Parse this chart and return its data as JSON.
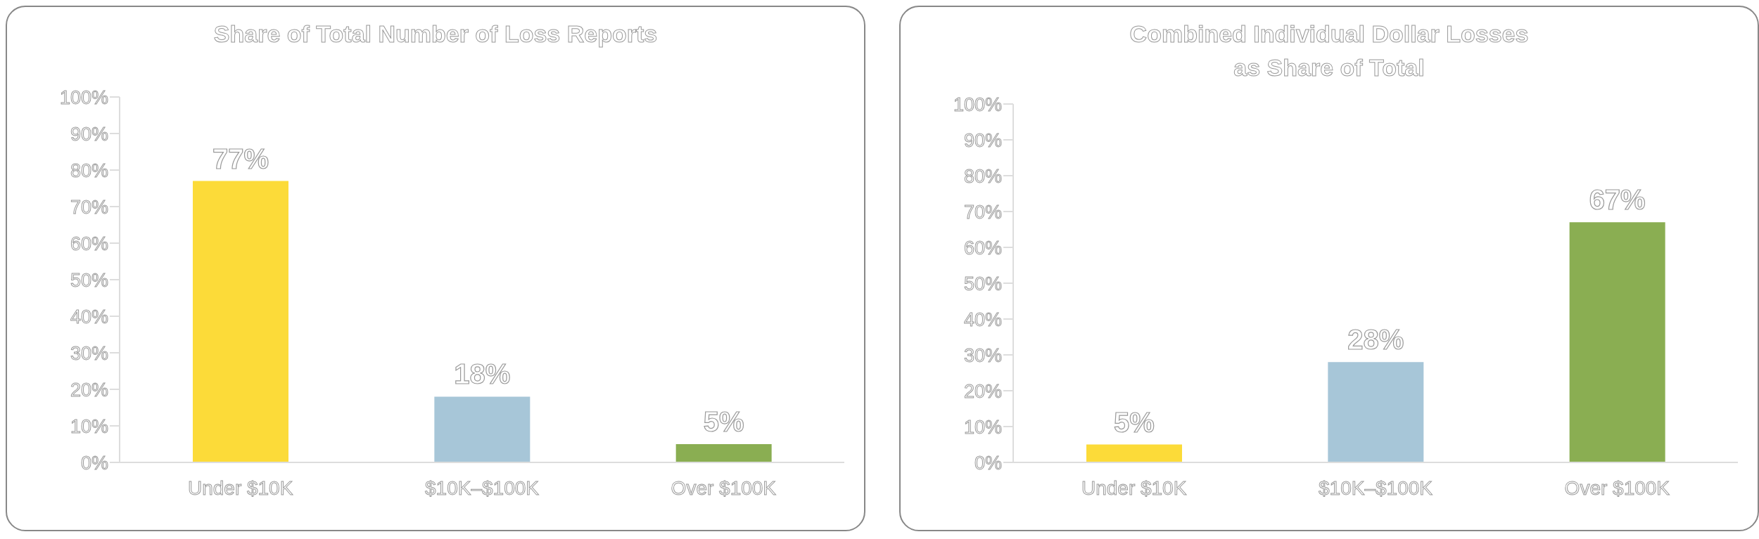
{
  "chart_data": [
    {
      "type": "bar",
      "title": "Share of Total Number of Loss Reports",
      "categories": [
        "Under $10K",
        "$10K–$100K",
        "Over $100K"
      ],
      "values": [
        77,
        18,
        5
      ],
      "colors": [
        "#fcdb39",
        "#a7c6d8",
        "#8aae52"
      ],
      "value_labels": [
        "77%",
        "18%",
        "5%"
      ],
      "ylim": [
        0,
        100
      ],
      "yticks": [
        {
          "value": 0,
          "label": "0%"
        },
        {
          "value": 10,
          "label": "10%"
        },
        {
          "value": 20,
          "label": "20%"
        },
        {
          "value": 30,
          "label": "30%"
        },
        {
          "value": 40,
          "label": "40%"
        },
        {
          "value": 50,
          "label": "50%"
        },
        {
          "value": 60,
          "label": "60%"
        },
        {
          "value": 70,
          "label": "70%"
        },
        {
          "value": 80,
          "label": "80%"
        },
        {
          "value": 90,
          "label": "90%"
        },
        {
          "value": 100,
          "label": "100%"
        }
      ],
      "grid": false,
      "legend": false
    },
    {
      "type": "bar",
      "title": "Combined Individual Dollar Losses\nas Share of Total",
      "categories": [
        "Under $10K",
        "$10K–$100K",
        "Over $100K"
      ],
      "values": [
        5,
        28,
        67
      ],
      "colors": [
        "#fcdb39",
        "#a7c6d8",
        "#8aae52"
      ],
      "value_labels": [
        "5%",
        "28%",
        "67%"
      ],
      "ylim": [
        0,
        100
      ],
      "yticks": [
        {
          "value": 0,
          "label": "0%"
        },
        {
          "value": 10,
          "label": "10%"
        },
        {
          "value": 20,
          "label": "20%"
        },
        {
          "value": 30,
          "label": "30%"
        },
        {
          "value": 40,
          "label": "40%"
        },
        {
          "value": 50,
          "label": "50%"
        },
        {
          "value": 60,
          "label": "60%"
        },
        {
          "value": 70,
          "label": "70%"
        },
        {
          "value": 80,
          "label": "80%"
        },
        {
          "value": 90,
          "label": "90%"
        },
        {
          "value": 100,
          "label": "100%"
        }
      ],
      "grid": false,
      "legend": false
    }
  ]
}
